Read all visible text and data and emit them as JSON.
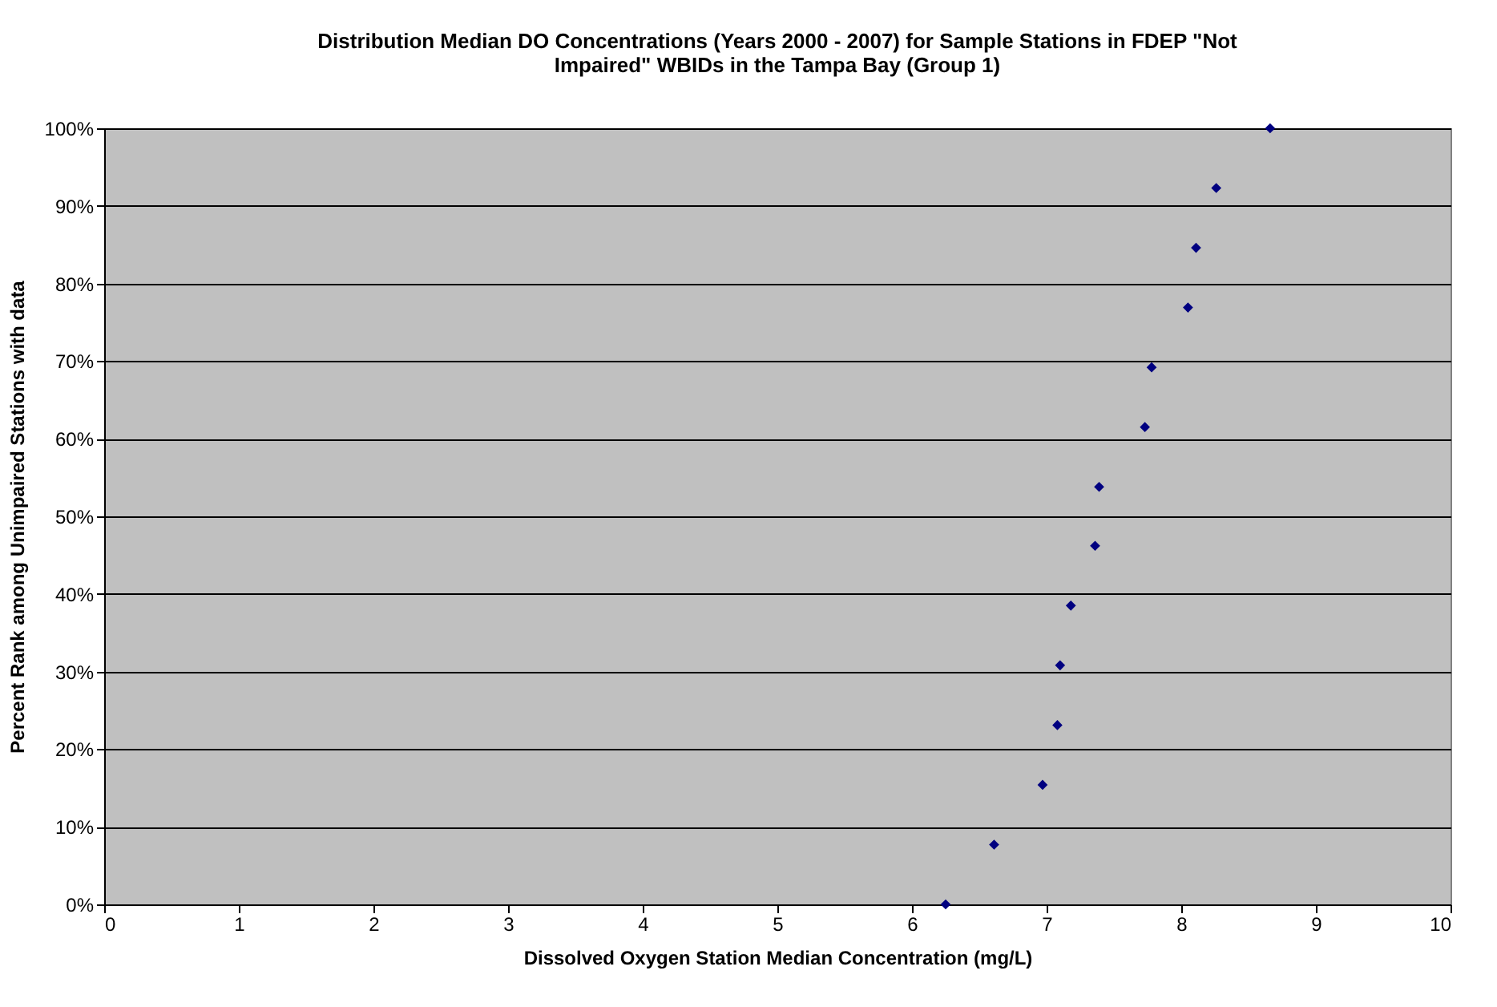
{
  "chart_data": {
    "type": "scatter",
    "title": "Distribution Median DO Concentrations (Years 2000 - 2007) for Sample Stations in FDEP \"Not Impaired\" WBIDs in the Tampa Bay (Group 1)",
    "xlabel": "Dissolved Oxygen Station Median Concentration (mg/L)",
    "ylabel": "Percent Rank among Unimpaired Stations with data",
    "x": [
      6.25,
      6.61,
      6.97,
      7.08,
      7.1,
      7.18,
      7.36,
      7.39,
      7.73,
      7.78,
      8.05,
      8.11,
      8.26,
      8.66
    ],
    "series": [
      {
        "color": "#000080",
        "values": [
          0,
          7.7,
          15.4,
          23.1,
          30.8,
          38.5,
          46.2,
          53.8,
          61.5,
          69.2,
          76.9,
          84.6,
          92.3,
          100
        ]
      }
    ],
    "xlim": [
      0,
      10
    ],
    "xticks": [
      0,
      1,
      2,
      3,
      4,
      5,
      6,
      7,
      8,
      9,
      10
    ],
    "ylim": [
      0,
      100
    ],
    "yticks": [
      {
        "value": 0,
        "label": "0%"
      },
      {
        "value": 10,
        "label": "10%"
      },
      {
        "value": 20,
        "label": "20%"
      },
      {
        "value": 30,
        "label": "30%"
      },
      {
        "value": 40,
        "label": "40%"
      },
      {
        "value": 50,
        "label": "50%"
      },
      {
        "value": 60,
        "label": "60%"
      },
      {
        "value": 70,
        "label": "70%"
      },
      {
        "value": 80,
        "label": "80%"
      },
      {
        "value": 90,
        "label": "90%"
      },
      {
        "value": 100,
        "label": "100%"
      }
    ],
    "grid": "y",
    "marker": "diamond"
  }
}
